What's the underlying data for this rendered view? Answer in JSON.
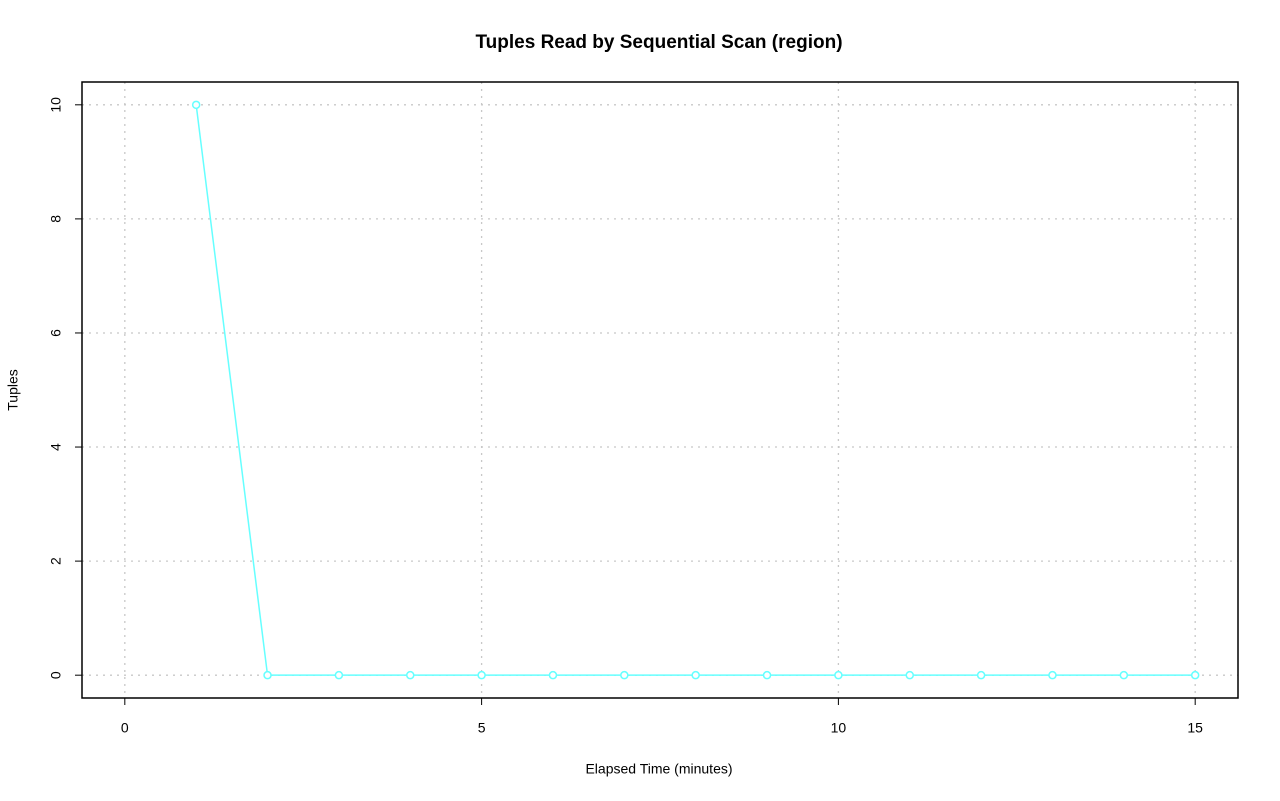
{
  "chart_data": {
    "type": "line",
    "title": "Tuples Read by Sequential Scan (region)",
    "x_label": "Elapsed Time (minutes)",
    "y_label": "Tuples",
    "x": [
      1,
      2,
      3,
      4,
      5,
      6,
      7,
      8,
      9,
      10,
      11,
      12,
      13,
      14,
      15
    ],
    "series": [
      {
        "color": "#66ffff",
        "values": [
          10,
          0,
          0,
          0,
          0,
          0,
          0,
          0,
          0,
          0,
          0,
          0,
          0,
          0,
          0
        ]
      }
    ],
    "xlim": [
      -0.6,
      15.6
    ],
    "xticks": [
      0,
      5,
      10,
      15
    ],
    "ylim": [
      -0.4,
      10.4
    ],
    "yticks": [
      0,
      2,
      4,
      6,
      8,
      10
    ],
    "grid": true
  }
}
